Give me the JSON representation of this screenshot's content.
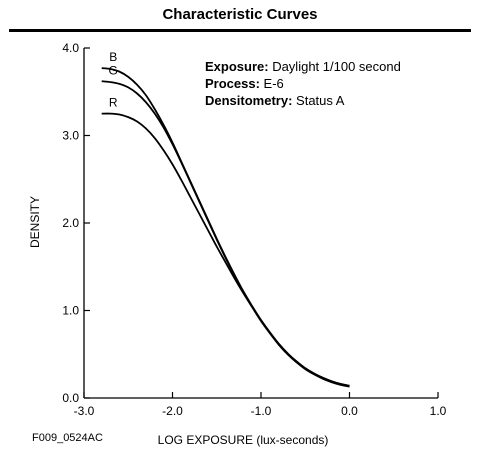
{
  "header": {
    "title": "Characteristic Curves"
  },
  "figure_code": "F009_0524AC",
  "notes": [
    {
      "key": "Exposure:",
      "value": " Daylight 1/100 second"
    },
    {
      "key": "Process:",
      "value": " E-6"
    },
    {
      "key": "Densitometry:",
      "value": " Status A"
    }
  ],
  "chart_data": {
    "type": "line",
    "title": "Characteristic Curves",
    "xlabel": "LOG EXPOSURE (lux-seconds)",
    "ylabel": "DENSITY",
    "xlim": [
      -3.0,
      1.0
    ],
    "ylim": [
      0.0,
      4.0
    ],
    "x_ticks": [
      -3.0,
      -2.0,
      -1.0,
      0.0,
      1.0
    ],
    "x_tick_labels": [
      "-3.0",
      "-2.0",
      "-1.0",
      "0.0",
      "1.0"
    ],
    "y_ticks": [
      0.0,
      1.0,
      2.0,
      3.0,
      4.0
    ],
    "y_tick_labels": [
      "0.0",
      "1.0",
      "2.0",
      "3.0",
      "4.0"
    ],
    "grid": false,
    "series": [
      {
        "name": "B",
        "color": "#000000",
        "x": [
          -2.8,
          -2.7,
          -2.6,
          -2.5,
          -2.4,
          -2.3,
          -2.2,
          -2.1,
          -2.0,
          -1.9,
          -1.8,
          -1.7,
          -1.6,
          -1.5,
          -1.4,
          -1.3,
          -1.2,
          -1.1,
          -1.0,
          -0.9,
          -0.8,
          -0.7,
          -0.6,
          -0.5,
          -0.4,
          -0.3,
          -0.2,
          -0.1,
          0.0
        ],
        "y": [
          3.77,
          3.76,
          3.73,
          3.67,
          3.58,
          3.46,
          3.3,
          3.12,
          2.92,
          2.7,
          2.48,
          2.26,
          2.04,
          1.82,
          1.61,
          1.41,
          1.22,
          1.05,
          0.89,
          0.75,
          0.62,
          0.51,
          0.42,
          0.34,
          0.28,
          0.23,
          0.19,
          0.16,
          0.14
        ]
      },
      {
        "name": "G",
        "color": "#000000",
        "x": [
          -2.8,
          -2.7,
          -2.6,
          -2.5,
          -2.4,
          -2.3,
          -2.2,
          -2.1,
          -2.0,
          -1.9,
          -1.8,
          -1.7,
          -1.6,
          -1.5,
          -1.4,
          -1.3,
          -1.2,
          -1.1,
          -1.0,
          -0.9,
          -0.8,
          -0.7,
          -0.6,
          -0.5,
          -0.4,
          -0.3,
          -0.2,
          -0.1,
          0.0
        ],
        "y": [
          3.62,
          3.61,
          3.59,
          3.55,
          3.48,
          3.38,
          3.25,
          3.09,
          2.9,
          2.69,
          2.47,
          2.25,
          2.03,
          1.81,
          1.6,
          1.4,
          1.21,
          1.04,
          0.88,
          0.74,
          0.61,
          0.5,
          0.41,
          0.34,
          0.28,
          0.23,
          0.19,
          0.16,
          0.14
        ]
      },
      {
        "name": "R",
        "color": "#000000",
        "x": [
          -2.8,
          -2.7,
          -2.6,
          -2.5,
          -2.4,
          -2.3,
          -2.2,
          -2.1,
          -2.0,
          -1.9,
          -1.8,
          -1.7,
          -1.6,
          -1.5,
          -1.4,
          -1.3,
          -1.2,
          -1.1,
          -1.0,
          -0.9,
          -0.8,
          -0.7,
          -0.6,
          -0.5,
          -0.4,
          -0.3,
          -0.2,
          -0.1,
          0.0
        ],
        "y": [
          3.25,
          3.25,
          3.24,
          3.21,
          3.16,
          3.08,
          2.97,
          2.83,
          2.67,
          2.49,
          2.3,
          2.11,
          1.92,
          1.73,
          1.55,
          1.37,
          1.2,
          1.04,
          0.89,
          0.75,
          0.62,
          0.51,
          0.41,
          0.33,
          0.27,
          0.22,
          0.18,
          0.15,
          0.13
        ]
      }
    ]
  }
}
